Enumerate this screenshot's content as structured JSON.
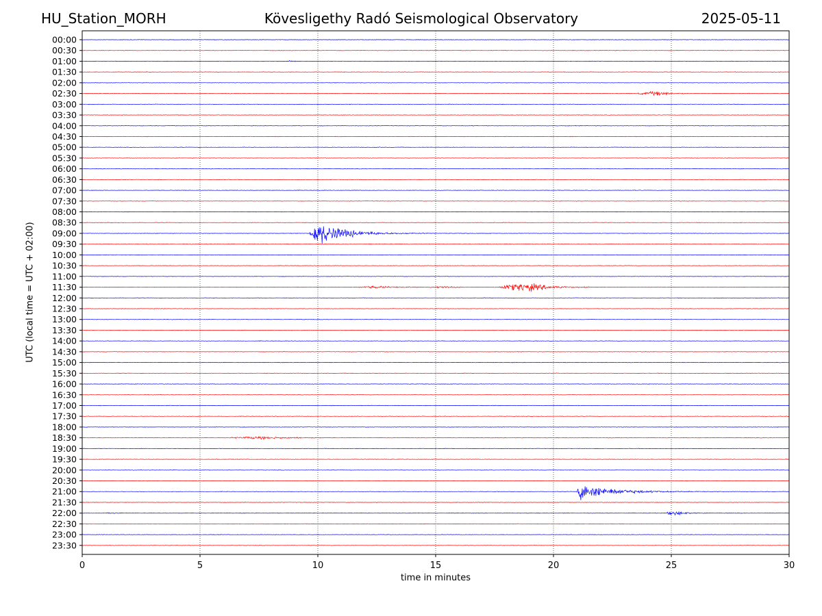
{
  "header": {
    "station": "HU_Station_MORH",
    "title": "Kövesligethy Radó Seismological Observatory",
    "date": "2025-05-11"
  },
  "chart_data": {
    "type": "line",
    "title": "Kövesligethy Radó Seismological Observatory",
    "xlabel": "time in minutes",
    "ylabel": "UTC (local time = UTC + 02:00)",
    "xlim": [
      0,
      30
    ],
    "x_ticks": [
      "0",
      "5",
      "10",
      "15",
      "20",
      "25",
      "30"
    ],
    "x_tick_values": [
      0,
      5,
      10,
      15,
      20,
      25,
      30
    ],
    "rows": [
      "00:00",
      "00:30",
      "01:00",
      "01:30",
      "02:00",
      "02:30",
      "03:00",
      "03:30",
      "04:00",
      "04:30",
      "05:00",
      "05:30",
      "06:00",
      "06:30",
      "07:00",
      "07:30",
      "08:00",
      "08:30",
      "09:00",
      "09:30",
      "10:00",
      "10:30",
      "11:00",
      "11:30",
      "12:00",
      "12:30",
      "13:00",
      "13:30",
      "14:00",
      "14:30",
      "15:00",
      "15:30",
      "16:00",
      "16:30",
      "17:00",
      "17:30",
      "18:00",
      "18:30",
      "19:00",
      "19:30",
      "20:00",
      "20:30",
      "21:00",
      "21:30",
      "22:00",
      "22:30",
      "23:00",
      "23:30"
    ],
    "row_colors": [
      "#0000ff",
      "#ff0000"
    ],
    "grid": "vertical dotted lines at x ticks",
    "events": [
      {
        "row": "01:00",
        "onset_min": 8.8,
        "duration_min": 0.3,
        "amplitude": 0.45,
        "decay_min": 0.15
      },
      {
        "row": "02:30",
        "onset_min": 23.6,
        "duration_min": 2.2,
        "amplitude": 1.1,
        "decay_min": 0.5,
        "peak_min": 24.4
      },
      {
        "row": "05:00",
        "onset_min": 12.4,
        "duration_min": 0.3,
        "amplitude": 0.25,
        "decay_min": 0.2
      },
      {
        "row": "09:00",
        "onset_min": 9.65,
        "duration_min": 8.0,
        "amplitude": 6.0,
        "decay_min": 1.1,
        "peak_min": 10.0
      },
      {
        "row": "11:30",
        "onset_min": 11.7,
        "duration_min": 2.5,
        "amplitude": 0.5,
        "decay_min": 1.2,
        "peak_min": 12.4
      },
      {
        "row": "11:30",
        "onset_min": 14.7,
        "duration_min": 1.5,
        "amplitude": 0.45,
        "decay_min": 0.6,
        "peak_min": 15.3
      },
      {
        "row": "11:30",
        "onset_min": 17.7,
        "duration_min": 3.8,
        "amplitude": 2.3,
        "decay_min": 0.9,
        "peak_min": 18.8
      },
      {
        "row": "18:30",
        "onset_min": 6.3,
        "duration_min": 4.0,
        "amplitude": 0.6,
        "decay_min": 1.4,
        "peak_min": 7.4
      },
      {
        "row": "21:00",
        "onset_min": 21.0,
        "duration_min": 7.0,
        "amplitude": 4.2,
        "decay_min": 1.3,
        "peak_min": 21.1
      },
      {
        "row": "22:00",
        "onset_min": 1.1,
        "duration_min": 0.6,
        "amplitude": 0.35,
        "decay_min": 0.4
      },
      {
        "row": "22:00",
        "onset_min": 24.8,
        "duration_min": 1.8,
        "amplitude": 1.2,
        "decay_min": 0.5,
        "peak_min": 25.1
      }
    ]
  }
}
